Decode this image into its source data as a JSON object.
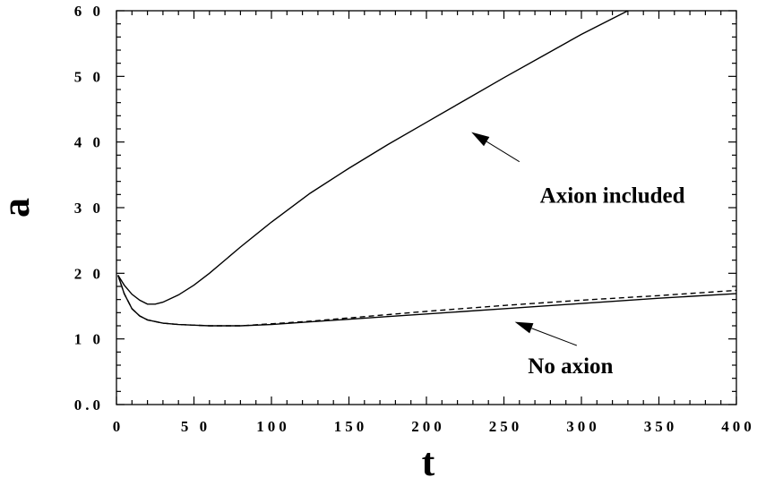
{
  "chart_data": {
    "type": "line",
    "title": "",
    "xlabel": "t",
    "ylabel": "a",
    "xlim": [
      0,
      400
    ],
    "ylim": [
      0,
      60
    ],
    "grid": false,
    "legend": "none",
    "x_ticks": [
      {
        "value": 0,
        "label": "0"
      },
      {
        "value": 50,
        "label": "5 0"
      },
      {
        "value": 100,
        "label": "100"
      },
      {
        "value": 150,
        "label": "150"
      },
      {
        "value": 200,
        "label": "200"
      },
      {
        "value": 250,
        "label": "250"
      },
      {
        "value": 300,
        "label": "300"
      },
      {
        "value": 350,
        "label": "350"
      },
      {
        "value": 400,
        "label": "400"
      }
    ],
    "y_ticks": [
      {
        "value": 0,
        "label": "0.0"
      },
      {
        "value": 10,
        "label": "1 0"
      },
      {
        "value": 20,
        "label": "2 0"
      },
      {
        "value": 30,
        "label": "3 0"
      },
      {
        "value": 40,
        "label": "4 0"
      },
      {
        "value": 50,
        "label": "5 0"
      },
      {
        "value": 60,
        "label": "6 0"
      }
    ],
    "series": [
      {
        "style": "solid",
        "color": "#000000",
        "points": [
          [
            1,
            19.7
          ],
          [
            5,
            18.2
          ],
          [
            10,
            16.8
          ],
          [
            15,
            15.9
          ],
          [
            20,
            15.3
          ],
          [
            25,
            15.3
          ],
          [
            30,
            15.6
          ],
          [
            40,
            16.7
          ],
          [
            50,
            18.2
          ],
          [
            60,
            20.0
          ],
          [
            80,
            24.0
          ],
          [
            100,
            27.8
          ],
          [
            125,
            32.2
          ],
          [
            150,
            36.0
          ],
          [
            175,
            39.6
          ],
          [
            200,
            43.0
          ],
          [
            225,
            46.4
          ],
          [
            250,
            49.8
          ],
          [
            275,
            53.1
          ],
          [
            300,
            56.4
          ],
          [
            330,
            60.0
          ]
        ]
      },
      {
        "style": "solid",
        "color": "#000000",
        "points": [
          [
            1,
            19.7
          ],
          [
            5,
            16.9
          ],
          [
            10,
            14.6
          ],
          [
            15,
            13.5
          ],
          [
            20,
            12.9
          ],
          [
            30,
            12.4
          ],
          [
            40,
            12.2
          ],
          [
            50,
            12.1
          ],
          [
            60,
            12.0
          ],
          [
            80,
            12.0
          ],
          [
            100,
            12.2
          ],
          [
            125,
            12.6
          ],
          [
            150,
            13.0
          ],
          [
            175,
            13.4
          ],
          [
            200,
            13.8
          ],
          [
            250,
            14.6
          ],
          [
            300,
            15.4
          ],
          [
            350,
            16.2
          ],
          [
            400,
            16.9
          ]
        ]
      },
      {
        "style": "dashed",
        "color": "#000000",
        "points": [
          [
            1,
            19.7
          ],
          [
            5,
            16.9
          ],
          [
            10,
            14.6
          ],
          [
            15,
            13.5
          ],
          [
            20,
            12.9
          ],
          [
            30,
            12.4
          ],
          [
            40,
            12.2
          ],
          [
            50,
            12.1
          ],
          [
            60,
            12.0
          ],
          [
            80,
            12.0
          ],
          [
            100,
            12.3
          ],
          [
            125,
            12.7
          ],
          [
            150,
            13.2
          ],
          [
            175,
            13.7
          ],
          [
            200,
            14.2
          ],
          [
            250,
            15.1
          ],
          [
            300,
            15.9
          ],
          [
            350,
            16.6
          ],
          [
            400,
            17.4
          ]
        ]
      }
    ],
    "annotations": [
      {
        "text": "Axion included",
        "text_at": [
          320,
          32
        ],
        "arrow_from": [
          260,
          37
        ],
        "arrow_to": [
          229,
          41.5
        ]
      },
      {
        "text": "No axion",
        "text_at": [
          293,
          6
        ],
        "arrow_from": [
          297,
          9
        ],
        "arrow_to": [
          257,
          12.6
        ]
      }
    ]
  }
}
